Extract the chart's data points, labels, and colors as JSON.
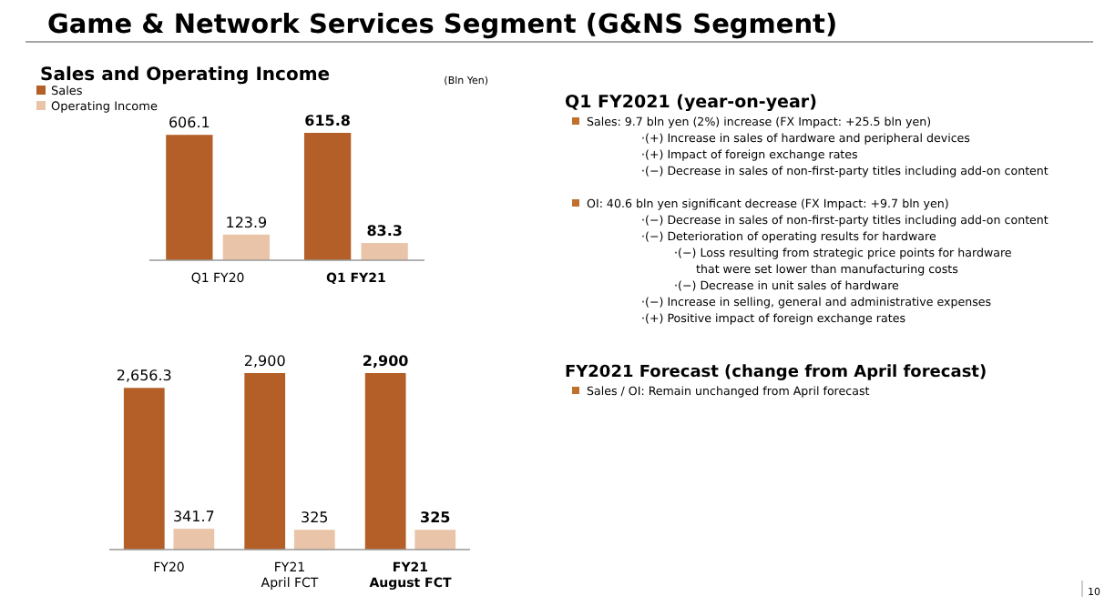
{
  "chart_data": [
    {
      "type": "bar",
      "title": "Sales and Operating Income",
      "ylabel": "(Bln Yen)",
      "categories": [
        "Q1 FY20",
        "Q1 FY21"
      ],
      "legend": "top left",
      "data_labels": true,
      "series": [
        {
          "name": "Sales",
          "color": "#b35f27",
          "values": [
            606.1,
            615.8
          ]
        },
        {
          "name": "Operating Income",
          "color": "#eac4a8",
          "values": [
            123.9,
            83.3
          ]
        }
      ]
    },
    {
      "type": "bar",
      "categories": [
        "FY20",
        "FY21\nApril FCT",
        "FY21\nAugust FCT"
      ],
      "legend": false,
      "series": [
        {
          "color": "#b35f27",
          "values": [
            2656.3,
            2900,
            2900
          ],
          "value_labels": [
            "2,656.3",
            "2,900",
            "2,900"
          ]
        },
        {
          "color": "#eac4a8",
          "values": [
            341.7,
            325,
            325
          ],
          "value_labels": [
            "341.7",
            "325",
            "325"
          ]
        }
      ]
    },
    {
      "type": "other",
      "title": "Game & Network Services Segment (G&NS Segment)",
      "subtitle": "Q1 FY2021 (year-on-year)",
      "annotations": [
        "Sales: 9.7 bln yen (2%) increase (FX Impact: +25.5 bln yen)",
        "·(+) Increase in sales of hardware and peripheral devices",
        "·(+) Impact of foreign exchange rates",
        "·(−) Decrease in sales of non-first-party titles including add-on content",
        "OI: 40.6 bln yen significant decrease (FX Impact: +9.7 bln yen)",
        "·(−) Decrease in sales of non-first-party titles including add-on content",
        "·(−) Deterioration of operating results for hardware",
        "·(−) Loss resulting from strategic price points for hardware that were set lower than manufacturing costs",
        "·(−) Decrease in unit sales of hardware",
        "·(−) Increase in selling, general and administrative expenses",
        "·(+) Positive impact of foreign exchange rates",
        "FY2021 Forecast (change from April forecast)",
        "Sales / OI: Remain unchanged from April forecast",
        "10"
      ]
    }
  ]
}
